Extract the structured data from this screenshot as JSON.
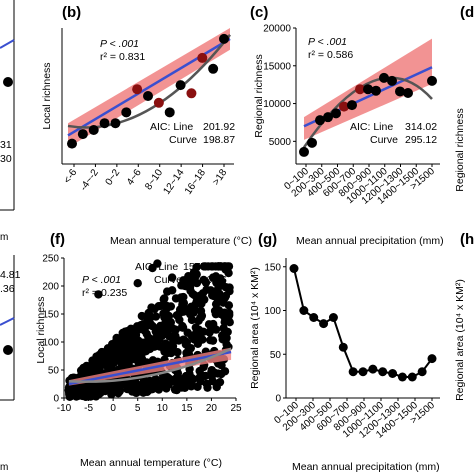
{
  "panels": [
    {
      "id": "b",
      "label": "(b)",
      "chart_data": {
        "type": "scatter",
        "categories": [
          "<-6",
          "-4~-2",
          "0~2",
          "4~6",
          "8~10",
          "12~14",
          "16~18",
          ">18"
        ],
        "x_index": [
          0,
          0.5,
          1,
          1.5,
          2,
          2.5,
          3,
          3.5,
          4,
          4.5,
          5,
          5.5,
          6,
          6.5,
          7
        ],
        "y": [
          0.15,
          0.22,
          0.25,
          0.3,
          0.3,
          0.38,
          0.55,
          0.5,
          0.45,
          0.38,
          0.58,
          0.52,
          0.78,
          0.7,
          0.92
        ],
        "ylabel": "Local richness",
        "stats": {
          "p": "P < .001",
          "r2": "r² = 0.831",
          "aic_line_label": "AIC: Line",
          "aic_line": "201.92",
          "aic_curve_label": "Curve",
          "aic_curve": "198.87"
        }
      }
    },
    {
      "id": "c",
      "label": "(c)",
      "chart_data": {
        "type": "scatter",
        "categories": [
          "0~100",
          "200~300",
          "400~500",
          "600~700",
          "800~900",
          "1000~1100",
          "1200~1300",
          "1400~1500",
          ">1500"
        ],
        "x_index": [
          0,
          0.5,
          1,
          1.5,
          2,
          2.5,
          3,
          3.5,
          4,
          4.5,
          5,
          5.5,
          6,
          6.5,
          8
        ],
        "y": [
          3600,
          4800,
          7800,
          8200,
          8700,
          9600,
          9800,
          11900,
          11900,
          11700,
          13400,
          13000,
          11600,
          11400,
          13000
        ],
        "ylim": [
          2000,
          20000
        ],
        "yticks": [
          "5000",
          "10000",
          "15000",
          "20000"
        ],
        "ylabel": "Regional richness",
        "xlabel": "Mean annual precipitation (mm)",
        "stats": {
          "p": "P < .001",
          "r2": "r² = 0.586",
          "aic_line_label": "AIC: Line",
          "aic_line": "314.02",
          "aic_curve_label": "Curve",
          "aic_curve": "295.12"
        }
      }
    },
    {
      "id": "f",
      "label": "(f)",
      "chart_data": {
        "type": "scatter",
        "xlim": [
          -10,
          25
        ],
        "ylim": [
          0,
          250
        ],
        "xticks": [
          "-5",
          "0",
          "5",
          "10",
          "15",
          "20",
          "25"
        ],
        "x_tick_first": "-10",
        "yticks": [
          "0",
          "50",
          "100",
          "150",
          "200",
          "250"
        ],
        "ylabel": "Local richness",
        "xlabel": "Mean annual temperature (°C)",
        "stats": {
          "p": "P < .001",
          "r2": "r² = 0.235",
          "aic_line_label": "AIC: Line",
          "aic_line": "15779.02",
          "aic_curve_label": "Curve",
          "aic_curve": "15766.66"
        }
      }
    },
    {
      "id": "g",
      "label": "(g)",
      "chart_data": {
        "type": "line",
        "categories": [
          "0~100",
          "200~300",
          "400~500",
          "600~700",
          "800~900",
          "1000~1100",
          "1200~1300",
          "1400~1500",
          ">1500"
        ],
        "x_index": [
          0,
          0.5,
          1,
          1.5,
          2,
          2.5,
          3,
          3.5,
          4,
          4.5,
          5,
          5.5,
          6,
          6.5,
          7
        ],
        "y": [
          148,
          100,
          92,
          85,
          92,
          58,
          30,
          30,
          33,
          30,
          28,
          24,
          24,
          30,
          45
        ],
        "ylim": [
          0,
          160
        ],
        "yticks": [
          "0",
          "50",
          "100",
          "150"
        ],
        "ylabel": "Regional area (10⁴ x KM²)",
        "xlabel": "Mean annual precipitation (mm)"
      }
    }
  ],
  "top_row_xlabel_b": "Mean annual temperature (°C)",
  "top_row_xlabel_c": "Mean annual precipitation (mm)",
  "top_row_xlabel_a_tail": "m",
  "left_strip": {
    "t1": "31",
    "t2": "30",
    "t3": "4.81",
    "t4": ".36",
    "t5": "m",
    "t6": "m"
  },
  "right_strip": {
    "d_label": "(d",
    "h_label": "(h",
    "ylabel_d": "Regional richness",
    "ylabel_h": "Regional area (10⁴ x KM²)"
  },
  "colors": {
    "band": "#f08080",
    "line": "#3a4fd0",
    "curve": "#555555",
    "dot": "#000000",
    "dot_red": "#8a1010"
  }
}
